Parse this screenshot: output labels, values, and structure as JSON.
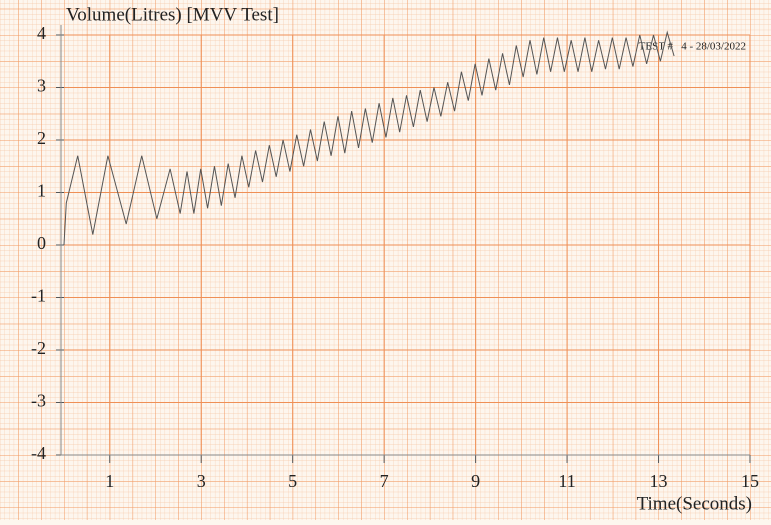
{
  "chart_data": {
    "type": "line",
    "title": "Volume(Litres) [MVV Test]",
    "annotation": "TEST #   4 - 28/03/2022",
    "x_label": "Time(Seconds)",
    "xlim": [
      0,
      15
    ],
    "ylim": [
      -4,
      4
    ],
    "xticks": [
      1,
      3,
      5,
      7,
      9,
      11,
      13,
      15
    ],
    "yticks": [
      4,
      3,
      2,
      1,
      0,
      -1,
      -2,
      -3,
      -4
    ],
    "grid": true,
    "x": [
      0,
      0.05,
      0.3,
      0.63,
      0.96,
      1.36,
      1.7,
      2.03,
      2.32,
      2.54,
      2.69,
      2.84,
      2.99,
      3.14,
      3.29,
      3.44,
      3.59,
      3.74,
      3.89,
      4.04,
      4.19,
      4.34,
      4.49,
      4.64,
      4.79,
      4.94,
      5.09,
      5.24,
      5.39,
      5.54,
      5.69,
      5.84,
      5.99,
      6.14,
      6.29,
      6.44,
      6.59,
      6.74,
      6.89,
      7.04,
      7.19,
      7.34,
      7.49,
      7.64,
      7.79,
      7.94,
      8.09,
      8.24,
      8.39,
      8.54,
      8.69,
      8.84,
      8.99,
      9.14,
      9.29,
      9.44,
      9.59,
      9.74,
      9.89,
      10.04,
      10.19,
      10.34,
      10.49,
      10.64,
      10.79,
      10.94,
      11.09,
      11.24,
      11.39,
      11.54,
      11.69,
      11.84,
      11.99,
      12.14,
      12.29,
      12.44,
      12.59,
      12.74,
      12.89,
      13.04,
      13.19,
      13.34
    ],
    "series": [
      {
        "color": "#555555",
        "values": [
          0,
          0.8,
          1.7,
          0.2,
          1.7,
          0.4,
          1.7,
          0.5,
          1.45,
          0.6,
          1.4,
          0.6,
          1.45,
          0.7,
          1.5,
          0.75,
          1.55,
          0.9,
          1.7,
          1.1,
          1.8,
          1.2,
          1.9,
          1.3,
          2.0,
          1.4,
          2.1,
          1.5,
          2.2,
          1.6,
          2.35,
          1.7,
          2.45,
          1.75,
          2.55,
          1.85,
          2.6,
          1.95,
          2.7,
          2.05,
          2.8,
          2.15,
          2.85,
          2.25,
          2.95,
          2.35,
          3.0,
          2.45,
          3.1,
          2.55,
          3.3,
          2.75,
          3.45,
          2.85,
          3.55,
          2.95,
          3.65,
          3.05,
          3.8,
          3.2,
          3.9,
          3.25,
          3.95,
          3.3,
          3.95,
          3.3,
          3.9,
          3.3,
          3.95,
          3.3,
          3.9,
          3.35,
          3.95,
          3.35,
          3.95,
          3.4,
          4.0,
          3.45,
          4.0,
          3.5,
          4.05,
          3.6
        ]
      }
    ]
  }
}
